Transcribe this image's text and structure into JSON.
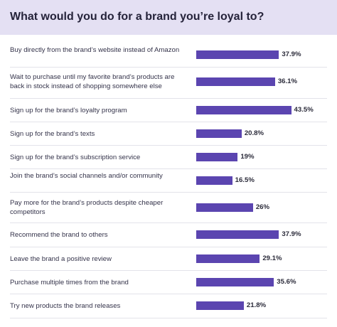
{
  "header": {
    "title": "What would you do for a brand you’re loyal to?"
  },
  "colors": {
    "bar": "#5b45b0",
    "header_bg": "#e4e0f3"
  },
  "chart_data": {
    "type": "bar",
    "orientation": "horizontal",
    "title": "What would you do for a brand you’re loyal to?",
    "categories": [
      "Buy directly from the brand’s website instead of Amazon",
      "Wait to purchase until my favorite brand’s products are back in stock instead of shopping somewhere else",
      "Sign up for the brand’s loyalty program",
      "Sign up for the brand’s texts",
      "Sign up for the brand’s subscription service",
      "Join the brand’s social channels and/or community",
      "Pay more for the brand’s products despite cheaper competitors",
      "Recommend the brand to others",
      "Leave the brand a positive review",
      "Purchase multiple times from the brand",
      "Try new products the brand releases"
    ],
    "values": [
      37.9,
      36.1,
      43.5,
      20.8,
      19,
      16.5,
      26,
      37.9,
      29.1,
      35.6,
      21.8
    ],
    "value_labels": [
      "37.9%",
      "36.1%",
      "43.5%",
      "20.8%",
      "19%",
      "16.5%",
      "26%",
      "37.9%",
      "29.1%",
      "35.6%",
      "21.8%"
    ],
    "grid": false,
    "legend": "none"
  }
}
